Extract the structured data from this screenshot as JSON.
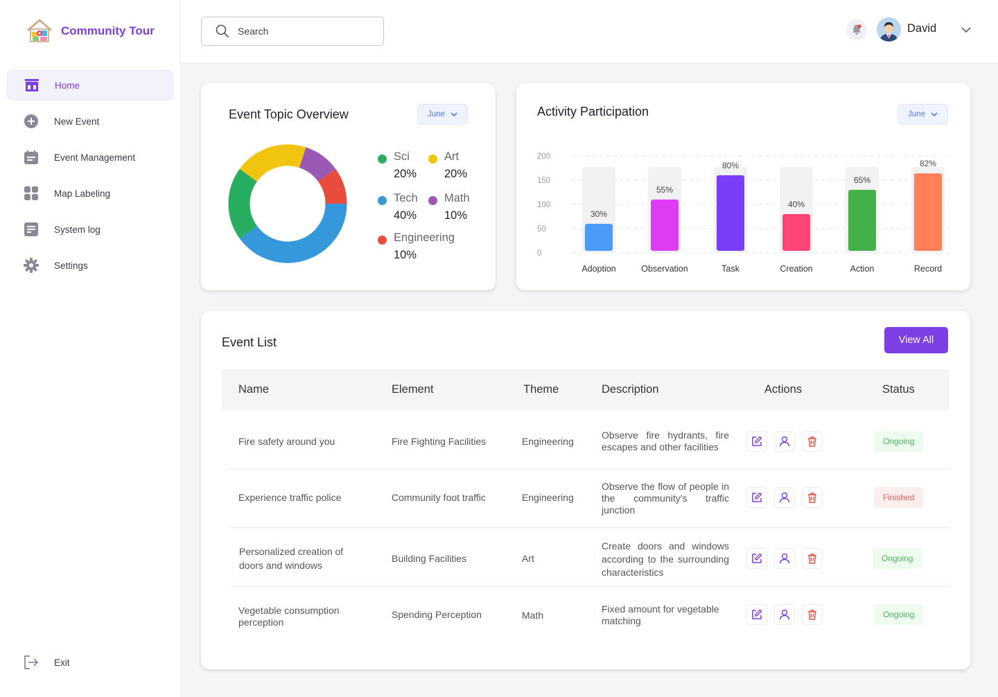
{
  "brand": {
    "name": "Community Tour"
  },
  "sidebar": {
    "items": [
      {
        "label": "Home",
        "icon": "home-icon",
        "active": true
      },
      {
        "label": "New Event",
        "icon": "plus-circle-icon"
      },
      {
        "label": "Event Management",
        "icon": "calendar-icon"
      },
      {
        "label": "Map Labeling",
        "icon": "grid-icon"
      },
      {
        "label": "System log",
        "icon": "log-icon"
      },
      {
        "label": "Settings",
        "icon": "gear-icon"
      }
    ],
    "exit_label": "Exit"
  },
  "header": {
    "search_placeholder": "Search",
    "user_name": "David"
  },
  "colors": {
    "accent": "#7b3fe4",
    "sci": "#27ae60",
    "art": "#f1c40f",
    "tech": "#3498db",
    "math": "#9b59b6",
    "engineering": "#e74c3c"
  },
  "topic_card": {
    "title": "Event Topic Overview",
    "month": "June",
    "legend": [
      {
        "name": "Sci",
        "value": "20%"
      },
      {
        "name": "Art",
        "value": "20%"
      },
      {
        "name": "Tech",
        "value": "40%"
      },
      {
        "name": "Math",
        "value": "10%"
      },
      {
        "name": "Engineering",
        "value": "10%"
      }
    ]
  },
  "participation_card": {
    "title": "Activity Participation",
    "month": "June"
  },
  "chart_data": [
    {
      "type": "pie",
      "title": "Event Topic Overview",
      "categories": [
        "Tech",
        "Sci",
        "Art",
        "Math",
        "Engineering"
      ],
      "values": [
        40,
        20,
        20,
        10,
        10
      ],
      "colors": [
        "#3498db",
        "#27ae60",
        "#f1c40f",
        "#9b59b6",
        "#e74c3c"
      ]
    },
    {
      "type": "bar",
      "title": "Activity Participation",
      "categories": [
        "Adoption",
        "Observation",
        "Task",
        "Creation",
        "Action",
        "Record"
      ],
      "values": [
        60,
        110,
        160,
        80,
        130,
        164
      ],
      "labels": [
        "30%",
        "55%",
        "80%",
        "40%",
        "65%",
        "82%"
      ],
      "colors": [
        "#4c9bf7",
        "#dd3cf2",
        "#7a3df8",
        "#ff4478",
        "#44b04c",
        "#ff7f56"
      ],
      "yticks": [
        "200",
        "150",
        "100",
        "50",
        "0"
      ],
      "ylim": [
        0,
        200
      ]
    }
  ],
  "event_list": {
    "title": "Event List",
    "view_all_label": "View All",
    "columns": [
      "Name",
      "Element",
      "Theme",
      "Description",
      "Actions",
      "Status"
    ],
    "rows": [
      {
        "name": "Fire safety around you",
        "element": "Fire Fighting Facilities",
        "theme": "Engineering",
        "description": "Observe fire hydrants, fire escapes and other facilities",
        "status": "Ongoing"
      },
      {
        "name": "Experience traffic police",
        "element": "Community foot traffic",
        "theme": "Engineering",
        "description": "Observe the flow of people in the community's traffic junction",
        "status": "Finished"
      },
      {
        "name": "Personalized creation of doors and windows",
        "element": "Building Facilities",
        "theme": "Art",
        "description": "Create doors and windows according to the surrounding characteristics",
        "status": "Ongoing"
      },
      {
        "name": "Vegetable consumption perception",
        "element": "Spending Perception",
        "theme": "Math",
        "description": "Fixed amount for vegetable matching",
        "status": "Ongoing"
      }
    ]
  }
}
